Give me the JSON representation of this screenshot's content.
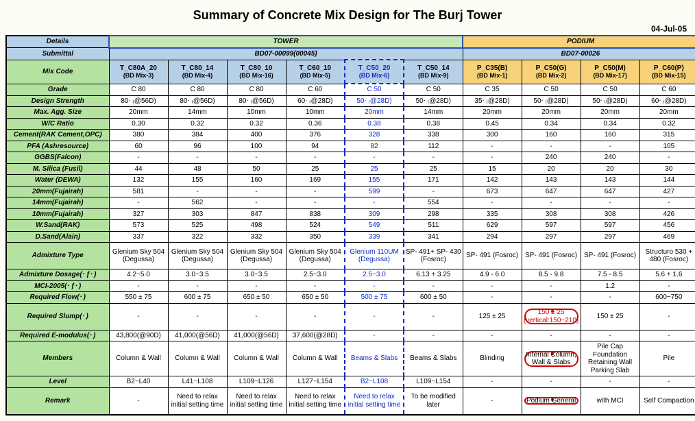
{
  "title": "Summary of Concrete Mix Design for The Burj Tower",
  "date": "04-Jul-05",
  "headers": {
    "details": "Details",
    "submittal": "Submittal",
    "mixcode": "Mix Code",
    "tower": "TOWER",
    "podium": "PODIUM",
    "tower_sub": "BD07-00099(00045)",
    "podium_sub": "BD07-00026"
  },
  "mixcodes": [
    {
      "code": "T_C80A_20",
      "bd": "(BD Mix-3)",
      "cls": "mix-blue"
    },
    {
      "code": "T_C80_14",
      "bd": "(BD Mix-4)",
      "cls": "mix-blue"
    },
    {
      "code": "T_C80_10",
      "bd": "(BD Mix-16)",
      "cls": "mix-blue"
    },
    {
      "code": "T_C60_10",
      "bd": "(BD Mix-5)",
      "cls": "mix-blue"
    },
    {
      "code": "T_C50_20",
      "bd": "(BD Mix-6)",
      "cls": "mix-blue"
    },
    {
      "code": "T_C50_14",
      "bd": "(BD Mix-9)",
      "cls": "mix-blue"
    },
    {
      "code": "P_C35(B)",
      "bd": "(BD Mix-1)",
      "cls": "mix-orange"
    },
    {
      "code": "P_C50(G)",
      "bd": "(BD Mix-2)",
      "cls": "mix-orange"
    },
    {
      "code": "P_C50(M)",
      "bd": "(BD Mix-17)",
      "cls": "mix-orange"
    },
    {
      "code": "P_C60(P)",
      "bd": "(BD Mix-15)",
      "cls": "mix-orange"
    }
  ],
  "col5_highlight_color": "#1029c8",
  "rows": [
    {
      "label": "Grade",
      "v": [
        "C 80",
        "C 80",
        "C 80",
        "C 60",
        "C 50",
        "C 50",
        "C 35",
        "C 50",
        "C 50",
        "C 60"
      ]
    },
    {
      "label": "Design Strength",
      "v": [
        "80‧ ₍@56D)",
        "80‧ ₍@56D)",
        "80‧ ₍@56D)",
        "60‧ ₍@28D)",
        "50‧ ₍@28D)",
        "50‧ ₍@28D)",
        "35‧ ₍@28D)",
        "50‧ ₍@28D)",
        "50‧ ₍@28D)",
        "60‧ ₍@28D)"
      ]
    },
    {
      "label": "Max. Agg. Size",
      "v": [
        "20mm",
        "14mm",
        "10mm",
        "10mm",
        "20mm",
        "14mm",
        "20mm",
        "20mm",
        "20mm",
        "20mm"
      ]
    },
    {
      "label": "W/C Ratio",
      "v": [
        "0.30",
        "0.32",
        "0.32",
        "0.36",
        "0.38",
        "0.38",
        "0.45",
        "0.34",
        "0.34",
        "0.32"
      ]
    },
    {
      "label": "Cement(RAK Cement,OPC)",
      "v": [
        "380",
        "384",
        "400",
        "376",
        "328",
        "338",
        "300",
        "160",
        "160",
        "315"
      ]
    },
    {
      "label": "PFA (Ashresource)",
      "v": [
        "60",
        "96",
        "100",
        "94",
        "82",
        "112",
        "-",
        "-",
        "-",
        "105"
      ]
    },
    {
      "label": "GGBS(Falcon)",
      "v": [
        "-",
        "-",
        "-",
        "-",
        "-",
        "-",
        "-",
        "240",
        "240",
        "-"
      ]
    },
    {
      "label": "M. Silica (Fusil)",
      "v": [
        "44",
        "48",
        "50",
        "25",
        "25",
        "25",
        "15",
        "20",
        "20",
        "30"
      ]
    },
    {
      "label": "Water (DEWA)",
      "v": [
        "132",
        "155",
        "160",
        "169",
        "155",
        "171",
        "142",
        "143",
        "143",
        "144"
      ]
    },
    {
      "label": "20mm(Fujairah)",
      "v": [
        "581",
        "-",
        "-",
        "-",
        "599",
        "-",
        "673",
        "647",
        "647",
        "427"
      ]
    },
    {
      "label": "14mm(Fujairah)",
      "v": [
        "-",
        "562",
        "-",
        "-",
        "-",
        "554",
        "-",
        "-",
        "-",
        "-"
      ]
    },
    {
      "label": "10mm(Fujairah)",
      "v": [
        "327",
        "303",
        "847",
        "838",
        "309",
        "298",
        "335",
        "308",
        "308",
        "426"
      ]
    },
    {
      "label": "W.Sand(RAK)",
      "v": [
        "573",
        "525",
        "498",
        "524",
        "549",
        "511",
        "629",
        "597",
        "597",
        "456"
      ]
    },
    {
      "label": "D.Sand(Alain)",
      "v": [
        "337",
        "322",
        "332",
        "350",
        "339",
        "341",
        "294",
        "297",
        "297",
        "469"
      ]
    },
    {
      "label": "Admixture Type",
      "v": [
        "Glenium Sky 504 (Degussa)",
        "Glenium Sky 504 (Degussa)",
        "Glenium Sky 504 (Degussa)",
        "Glenium Sky 504 (Degussa)",
        "Glenium 110UM (Degussa)",
        "SP- 491+ SP- 430 (Fosroc)",
        "SP- 491 (Fosroc)",
        "SP- 491 (Fosroc)",
        "SP- 491 (Fosroc)",
        "Structuro 530 + 480 (Fosroc)"
      ],
      "tall": true
    },
    {
      "label": "Admixture Dosage(‧ ƒ‧ )",
      "v": [
        "4.2~5.0",
        "3.0~3.5",
        "3.0~3.5",
        "2.5~3.0",
        "2.5~3.0",
        "6.13 + 3.25",
        "4.9 - 6.0",
        "8.5 - 9.8",
        "7.5 - 8.5",
        "5.6 + 1.6"
      ]
    },
    {
      "label": "MCI-2005(‧ ƒ‧ )",
      "v": [
        "-",
        "-",
        "-",
        "-",
        "-",
        "-",
        "-",
        "-",
        "1.2",
        "-"
      ]
    },
    {
      "label": "Required Flow(‧ )",
      "v": [
        "550 ± 75",
        "600 ± 75",
        "650 ± 50",
        "650 ± 50",
        "500 ± 75",
        "600 ± 50",
        "-",
        "-",
        "-",
        "600~750"
      ]
    },
    {
      "label": "Required Slump(‧ )",
      "v": [
        "-",
        "-",
        "-",
        "-",
        "-",
        "-",
        "125 ± 25",
        "150 ± 25 (vertical:150~210)",
        "150 ± 25",
        "-"
      ],
      "tall": true,
      "cloud": 7,
      "red": 7
    },
    {
      "label": "Required E-modulus(‧ )",
      "v": [
        "43,800(@90D)",
        "41,000(@56D)",
        "41,000(@56D)",
        "37,600(@28D)",
        "-",
        "-",
        "-",
        "-",
        "-",
        "-"
      ]
    },
    {
      "label": "Members",
      "v": [
        "Column & Wall",
        "Column & Wall",
        "Column & Wall",
        "Column & Wall",
        "Beams & Slabs",
        "Beams & Slabs",
        "Blinding",
        "Internal Column, Wall & Slabs",
        "Pile Cap Foundation Retaining Wall Parking Slab",
        "Pile"
      ],
      "tall": true,
      "cloud": 7
    },
    {
      "label": "Level",
      "v": [
        "B2~L40",
        "L41~L108",
        "L109~L126",
        "L127~L154",
        "B2~L108",
        "L109~L154",
        "-",
        "-",
        "-",
        "-"
      ]
    },
    {
      "label": "Remark",
      "v": [
        "-",
        "Need to relax initial setting time",
        "Need to relax initial setting time",
        "Need to relax initial setting time",
        "Need to relax initial setting time",
        "To be modified later",
        "-",
        "Podium General",
        "with MCI",
        "Self Compaction"
      ],
      "tall": true,
      "cloud": 7
    }
  ]
}
